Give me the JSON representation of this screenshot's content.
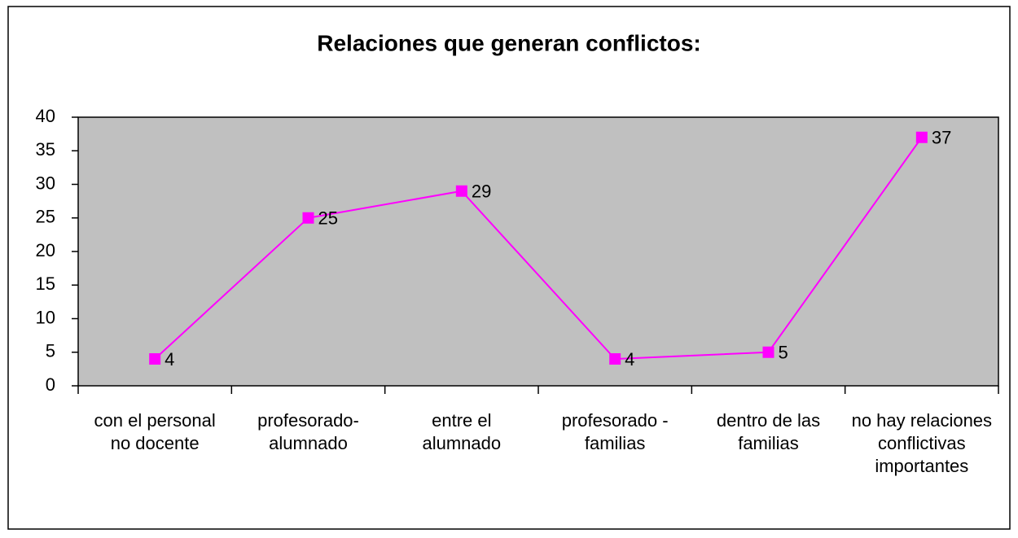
{
  "chart_data": {
    "type": "line",
    "title": "Relaciones que generan conflictos:",
    "categories": [
      "con el personal no docente",
      "profesorado-alumnado",
      "entre el alumnado",
      "profesorado - familias",
      "dentro de las familias",
      "no hay relaciones conflictivas importantes"
    ],
    "values": [
      4,
      25,
      29,
      4,
      5,
      37
    ],
    "color": "#ff00ff",
    "ylim": [
      0,
      40
    ],
    "yticks": [
      0,
      5,
      10,
      15,
      20,
      25,
      30,
      35,
      40
    ],
    "grid": false
  }
}
